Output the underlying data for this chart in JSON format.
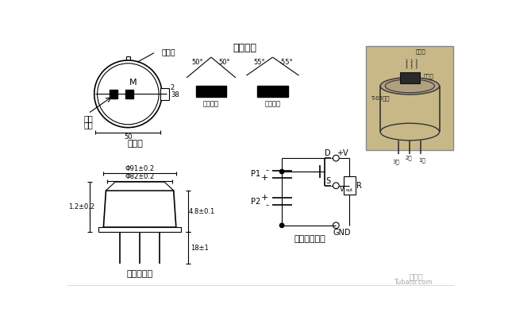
{
  "bg_color": "#ffffff",
  "top_view_label": "顶视图",
  "top_view_filter": "滤光窗",
  "top_view_sense": "敏感\n单元",
  "top_view_M": "M",
  "top_view_dim_50": "50",
  "top_view_dim_2": "2",
  "top_view_dim_38": "38",
  "angle_title": "探视角度",
  "angle_50L": "50°",
  "angle_50R": "50°",
  "angle_55L": "55°",
  "angle_55R": "-55°",
  "sense_unit1": "敏感单元",
  "sense_unit2": "敏感单元",
  "side_view_label": "侧视外型图",
  "dim_phi91": "Φ91±0.2",
  "dim_phi82": "Φ82±0.2",
  "dim_12": "1.2±0.2",
  "dim_48": "4.8±0.1",
  "dim_18": "18±1",
  "circuit_label": "内部电路原理",
  "circuit_D": "D",
  "circuit_S": "S",
  "circuit_pV": "+V",
  "circuit_Vout_V": "V",
  "circuit_Vout_out": "out",
  "circuit_P1": "P1",
  "circuit_P2": "P2",
  "circuit_R": "R",
  "circuit_GND": "GND",
  "circuit_minus1": "-",
  "circuit_plus1": "+",
  "circuit_plus2": "+",
  "circuit_minus2": "-",
  "photo_ir": "红外能",
  "photo_t05": "T-05金封",
  "photo_recv": "接收窗",
  "photo_pin2": "2脚",
  "photo_pin3": "3脚",
  "photo_pin1": "1脚",
  "watermark1": "土巴兔",
  "watermark2": "Tubatu.com"
}
